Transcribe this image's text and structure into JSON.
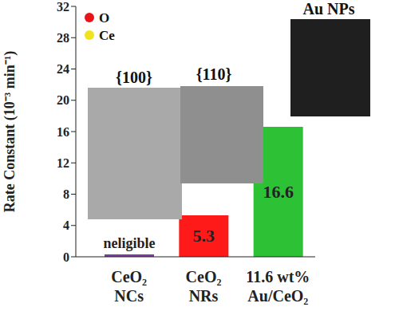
{
  "chart_data": {
    "type": "bar",
    "y_label": "Rate Constant (10⁻³ min⁻¹)",
    "categories": [
      "CeO₂ NCs",
      "CeO₂ NRs",
      "11.6 wt% Au/CeO₂"
    ],
    "values": [
      0.3,
      5.3,
      16.6
    ],
    "value_labels": [
      "neligible",
      "5.3",
      "16.6"
    ],
    "data_labels": true,
    "colors": [
      "#7b3f9e",
      "#ff1a1a",
      "#2dc236"
    ],
    "ylim": [
      0,
      32
    ],
    "yticks": [
      0,
      4,
      8,
      12,
      16,
      20,
      24,
      28,
      32
    ],
    "grid": false,
    "annotations": [
      {
        "text": "O",
        "color": "#e8141a"
      },
      {
        "text": "Ce",
        "color": "#f2e21c"
      },
      {
        "text": "{100}"
      },
      {
        "text": "{110}"
      },
      {
        "text": "Au NPs"
      }
    ]
  }
}
